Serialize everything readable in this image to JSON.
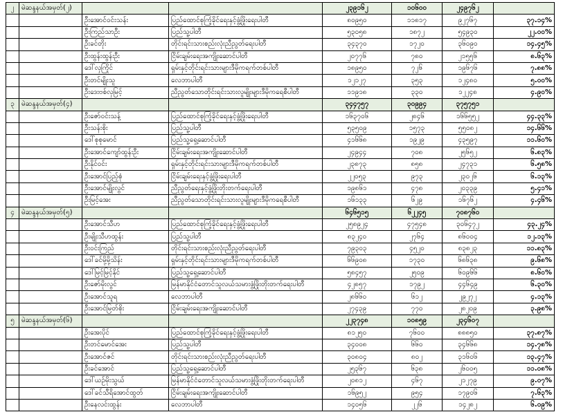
{
  "colors": {
    "section_header_bg": "#e6efe1",
    "border": "#000000"
  },
  "sections": [
    {
      "no": "၂",
      "constituency": "မဲဆန္ဒနယ်အမှတ်(၂)",
      "totals": [
        "၂၃၉၁၆၂",
        "၁၀၆၀၀",
        "၂၄၉၇၆၂"
      ],
      "candidates": [
        {
          "name": "ဦးအောင်ဝင်းသန်း",
          "party": "ပြည်ထောင်စုကြံ့ခိုင်ရေးနှင့်ဖွံ့ဖြိုးရေးပါတီ",
          "v1": "၈၀၉၅၀",
          "v2": "၁၁၈၁၇",
          "total": "၉၂၇၆၇",
          "pct": "၃၇.၁၄%"
        },
        {
          "name": "ဦးကြည်သာဦး",
          "party": "ပြည်သူ့ပါတီ",
          "v1": "၅၃၀၅၈",
          "v2": "၁၈၇၂",
          "total": "၅၄၉၃၀",
          "pct": "၂၂.၀၀%"
        },
        {
          "name": "ဦးခင်တိုး",
          "party": "တိုင်းရင်းသားစည်းလုံးညီညွတ်ရေးပါတီ",
          "v1": "၃၄၃၇၀",
          "v2": "၁၇၂၀",
          "total": "၃၆၀၉၀",
          "pct": "၁၄.၄၅%"
        },
        {
          "name": "ဦးထွန်းထွန်းဦး",
          "party": "ငြိမ်းချမ်းရေးအကျိုးဆောင်ပါတီ",
          "v1": "၂၀၇၇၆",
          "v2": "၇၈၀",
          "total": "၂၁၅၅၆",
          "pct": "၈.၆၃%"
        },
        {
          "name": "ဒေါ်လှကြိုင်",
          "party": "ရှမ်းနှင့်တိုင်းရင်းသားများဒီမိုကရက်တစ်ပါတီ",
          "v1": "၁၈၉၅၀",
          "v2": "၇၂၆",
          "total": "၁၉၆၇၆",
          "pct": "၇.၈၈%"
        },
        {
          "name": "ဦးတင်မျိုးသူ",
          "party": "လေဘာပါတီ",
          "v1": "၁၂၁၂၇",
          "v2": "၃၅၃",
          "total": "၁၂၄၈၀",
          "pct": "၅.၀၀%"
        },
        {
          "name": "ဦးဒေးဗစ်လှမြင့်",
          "party": "ညီညွတ်သောတိုင်းရင်းသားလူမျိုးများဒီမိုကရေစီပါတီ",
          "v1": "၁၁၉၁၈",
          "v2": "၃၃၀",
          "total": "၁၂၂၄၈",
          "pct": "၄.၉၀%"
        }
      ]
    },
    {
      "no": "၃",
      "constituency": "မဲဆန္ဒနယ်အမှတ်(၄)",
      "totals": [
        "၃၄၄၇၅၇",
        "၃၀၉၉၄",
        "၃၇၅၇၅၁"
      ],
      "candidates": [
        {
          "name": "ဦးဇော်ဝင်းသန့်",
          "party": "ပြည်ထောင်စုကြံ့ခိုင်ရေးနှင့်ဖွံ့ဖြိုးရေးပါတီ",
          "v1": "၁၆၃၇၀၆",
          "v2": "၂၈၄၆",
          "total": "၁၆၆၅၅၂",
          "pct": "၄၄.၃၃%"
        },
        {
          "name": "ဦးသန်းစိုး",
          "party": "ပြည်သူ့ပါတီ",
          "v1": "၅၃၅၀၉",
          "v2": "၁၅၇၃",
          "total": "၅၅၀၈၂",
          "pct": "၁၄.၆၆%"
        },
        {
          "name": "ဒေါ်စုစုမောင်",
          "party": "ပြည်သူ့ရှေ့ဆောင်ပါတီ",
          "v1": "၄၁၆၆၈",
          "v2": "၁၉၂၉",
          "total": "၄၃၅၉၇",
          "pct": "၁၁.၆၀%"
        },
        {
          "name": "ဦးအောင်ကျော်ထွန်းဦး",
          "party": "ငြိမ်းချမ်းရေးအကျိုးဆောင်ပါတီ",
          "v1": "၂၄၉၄၄",
          "v2": "၇၀၈",
          "total": "၂၅၆၅၂",
          "pct": "၆.၈၃%"
        },
        {
          "name": "ဦးနိုင်ဝင်း",
          "party": "ရှမ်းနှင့်တိုင်းရင်းသားများဒီမိုကရက်တစ်ပါတီ",
          "v1": "၂၃၈၇၃",
          "v2": "၈၅၈",
          "total": "၂၄၇၃၁",
          "pct": "၆.၅၈%"
        },
        {
          "name": "ဦးအောင်ပြည့်စုံ",
          "party": "ငြိမ်းချမ်းရေးနှင့်ဖွံ့ဖြိုးရေးပါတီ",
          "v1": "၂၂၀၅၃",
          "v2": "၉၇၃",
          "total": "၂၃၀၂၆",
          "pct": "၆.၁၃%"
        },
        {
          "name": "ဦးအောင်မျိုးလွင်",
          "party": "ညီညွတ်ရေးနှင့်ဖွံ့ဖြိုးတိုးတက်ရေးပါတီ",
          "v1": "၁၉၈၆၁",
          "v2": "၄၇၈",
          "total": "၂၀၃၃၉",
          "pct": "၅.၄၁%"
        },
        {
          "name": "ဦးမြင့်အေး",
          "party": "ညီညွတ်သောတိုင်းရင်းသားလူမျိုးများဒီမိုကရေစီပါတီ",
          "v1": "၁၆၁၃၃",
          "v2": "၆၂၉",
          "total": "၁၆၇၆၂",
          "pct": "၄.၄၆%"
        }
      ]
    },
    {
      "no": "၄",
      "constituency": "မဲဆန္ဒနယ်အမှတ်(၅)",
      "totals": [
        "၆၄၆၅၁၅",
        "၆၂၂၄၅",
        "၇၀၈၇၆၀"
      ],
      "candidates": [
        {
          "name": "ဦးအောင်သီဟ",
          "party": "ပြည်ထောင်စုကြံ့ခိုင်ရေးနှင့်ဖွံ့ဖြိုးရေးပါတီ",
          "v1": "၂၅၈၉၂၄",
          "v2": "၄၇၅၄၈",
          "total": "၃၀၆၄၇၂",
          "pct": "၄၃.၂၄%"
        },
        {
          "name": "ဦးမျိုးသီဟထွန်း",
          "party": "ပြည်သူ့ပါတီ",
          "v1": "၈၃၂၄၀",
          "v2": "၂၇၆၄",
          "total": "၈၆၀၀၄",
          "pct": "၁၂.၁၃%"
        },
        {
          "name": "ဦးဝင်းကြည်",
          "party": "တိုင်းရင်းသားစည်းလုံးညီညွတ်ရေးပါတီ",
          "v1": "၇၉၃၀၃",
          "v2": "၄၅၂၀",
          "total": "၈၃၈၂၃",
          "pct": "၁၁.၈၃%"
        },
        {
          "name": "ဒေါ်ခင်မို့မို့သိန်း",
          "party": "ရှမ်းနှင့်တိုင်းရင်းသားများဒီမိုကရက်တစ်ပါတီ",
          "v1": "၆၆၉၀၈",
          "v2": "၁၇၃၀",
          "total": "၆၈၆၃၈",
          "pct": "၉.၆၈%"
        },
        {
          "name": "ဒေါ်မြင့်မြင့်နိုင်",
          "party": "ပြည်သူ့ရှေ့ဆောင်ပါတီ",
          "v1": "၅၈၄၅၇",
          "v2": "၂၅၀၉",
          "total": "၆၀၉၆၆",
          "pct": "၈.၆၀%"
        },
        {
          "name": "ဦးဇော်မိုးလွင်",
          "party": "မြန်မာနိုင်ငံတောင်သူလယ်သမားဖွံ့ဖြိုးတိုးတက်ရေးပါတီ",
          "v1": "၄၂၈၅၇",
          "v2": "၁၇၉၂",
          "total": "၄၄၆၄၉",
          "pct": "၆.၃၀%"
        },
        {
          "name": "ဦးအောင်သူရ",
          "party": "လေဘာပါတီ",
          "v1": "၂၈၆၆၀",
          "v2": "၆၁၂",
          "total": "၂၉၂၇၂",
          "pct": "၄.၁၃%"
        },
        {
          "name": "ဦးအောင်မြတ်စိုး",
          "party": "ငြိမ်းချမ်းရေးအကျိုးဆောင်ပါတီ",
          "v1": "၂၇၄၃၉",
          "v2": "၇၇၀",
          "total": "၂၈၂၀၉",
          "pct": "၃.၉၈%"
        }
      ]
    },
    {
      "no": "၅",
      "constituency": "မဲဆန္ဒနယ်အမှတ်(၆)",
      "totals": [
        "၂၂၃၇၄၈",
        "၁၀၈၅၉",
        "၂၃၄၆၀၇"
      ],
      "candidates": [
        {
          "name": "ဦးအေးပိုင်",
          "party": "ပြည်ထောင်စုကြံ့ခိုင်ရေးနှင့်ဖွံ့ဖြိုးရေးပါတီ",
          "v1": "၈၁၂၅၀",
          "v2": "၇၆၀၀",
          "total": "၈၈၈၅၀",
          "pct": "၃၇.၈၇%"
        },
        {
          "name": "ဦးတင်မောင်အေး",
          "party": "ပြည်သူ့ပါတီ",
          "v1": "၃၄၀၀၈",
          "v2": "၆၆၀",
          "total": "၃၄၆၆၈",
          "pct": "၁၄.၇၈%"
        },
        {
          "name": "ဦးအောင်ဇင်",
          "party": "တိုင်းရင်းသားစည်းလုံးညီညွတ်ရေးပါတီ",
          "v1": "၃၀၈၀၄",
          "v2": "၈၀၂",
          "total": "၃၁၆၀၆",
          "pct": "၁၃.၄၇%"
        },
        {
          "name": "ဦးခင်အောင်",
          "party": "ပြည်သူ့ရှေ့ဆောင်ပါတီ",
          "v1": "၂၅၃၆၇",
          "v2": "၆၃၈",
          "total": "၂၆၀၀၅",
          "pct": "၁၁.၀၈%"
        },
        {
          "name": "ဒေါ်ယဉ်မိုးသွယ်",
          "party": "မြန်မာနိုင်ငံတောင်သူလယ်သမားဖွံ့ဖြိုးတိုးတက်ရေးပါတီ",
          "v1": "၂၀၈၁၂",
          "v2": "၄၆၇",
          "total": "၂၁၂၇၉",
          "pct": "၉.၀၇%"
        },
        {
          "name": "ဒေါ်ခင်သီရိအောင်ထွတ်",
          "party": "ငြိမ်းချမ်းရေးအကျိုးဆောင်ပါတီ",
          "v1": "၁၆၉၅၂",
          "v2": "၉၅၄",
          "total": "၁၇၉၀၆",
          "pct": "၇.၆၃%"
        },
        {
          "name": "ဦးနေလင်းထွန်း",
          "party": "လေဘာပါတီ",
          "v1": "၁၄၀၅၆",
          "v2": "၂၂၆",
          "total": "၁၄၂၈၂",
          "pct": "၆.၀၉%"
        }
      ]
    }
  ]
}
